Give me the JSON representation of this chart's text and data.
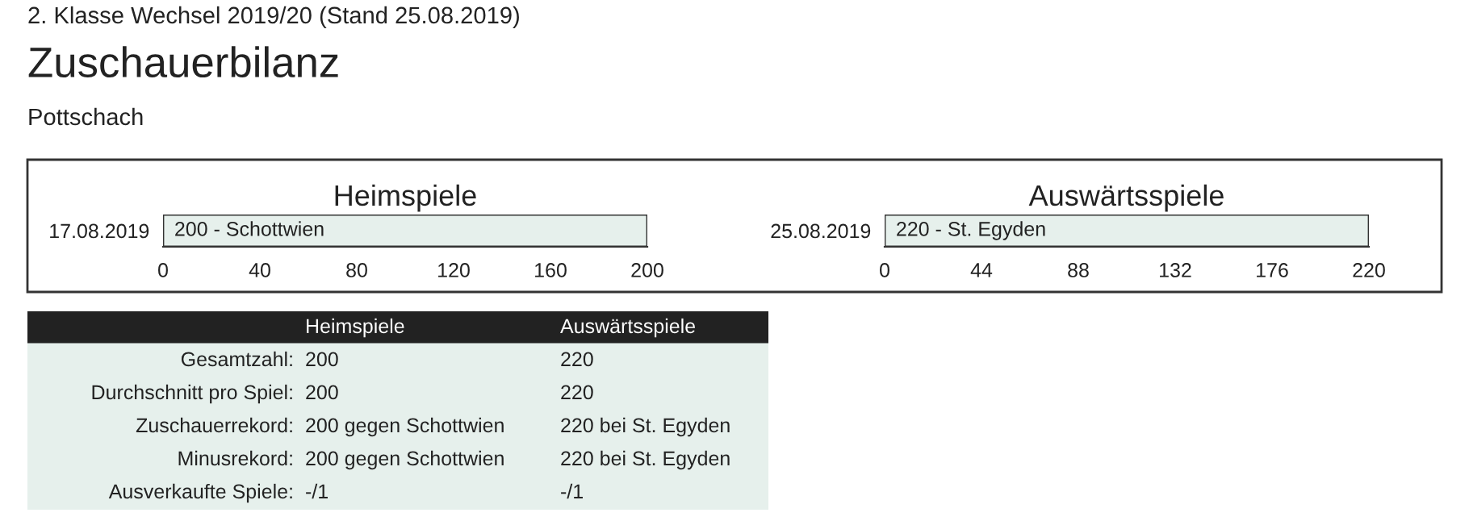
{
  "chart_data": [
    {
      "type": "other",
      "title": "Zuschauerbilanz",
      "subtitle": "Pottschach",
      "annotations": [
        "2. Klasse Wechsel 2019/20 (Stand 25.08.2019)"
      ]
    },
    {
      "type": "bar",
      "orientation": "horizontal",
      "title": "Heimspiele",
      "categories": [
        "17.08.2019"
      ],
      "values": [
        200
      ],
      "value_labels": [
        "200 - Schottwien"
      ],
      "color": "#e6f0ec",
      "xlim": [
        0,
        200
      ],
      "xticks": [
        0,
        40,
        80,
        120,
        160,
        200
      ]
    },
    {
      "type": "bar",
      "orientation": "horizontal",
      "title": "Auswärtsspiele",
      "categories": [
        "25.08.2019"
      ],
      "values": [
        220
      ],
      "value_labels": [
        "220 - St. Egyden"
      ],
      "color": "#e6f0ec",
      "xlim": [
        0,
        220
      ],
      "xticks": [
        0,
        44,
        88,
        132,
        176,
        220
      ]
    },
    {
      "type": "other",
      "categories": [
        null,
        "Heimspiele",
        "Auswärtsspiele"
      ],
      "y_categories": [
        "Gesamtzahl:",
        "Durchschnitt pro Spiel:",
        "Zuschauerrekord:",
        "Minusrekord:",
        "Ausverkaufte Spiele:"
      ],
      "cell_labels": [
        [
          "200",
          "220"
        ],
        [
          "200",
          "220"
        ],
        [
          "200 gegen Schottwien",
          "220 bei St. Egyden"
        ],
        [
          "200 gegen Schottwien",
          "220 bei St. Egyden"
        ],
        [
          "-/1",
          "-/1"
        ]
      ]
    }
  ]
}
